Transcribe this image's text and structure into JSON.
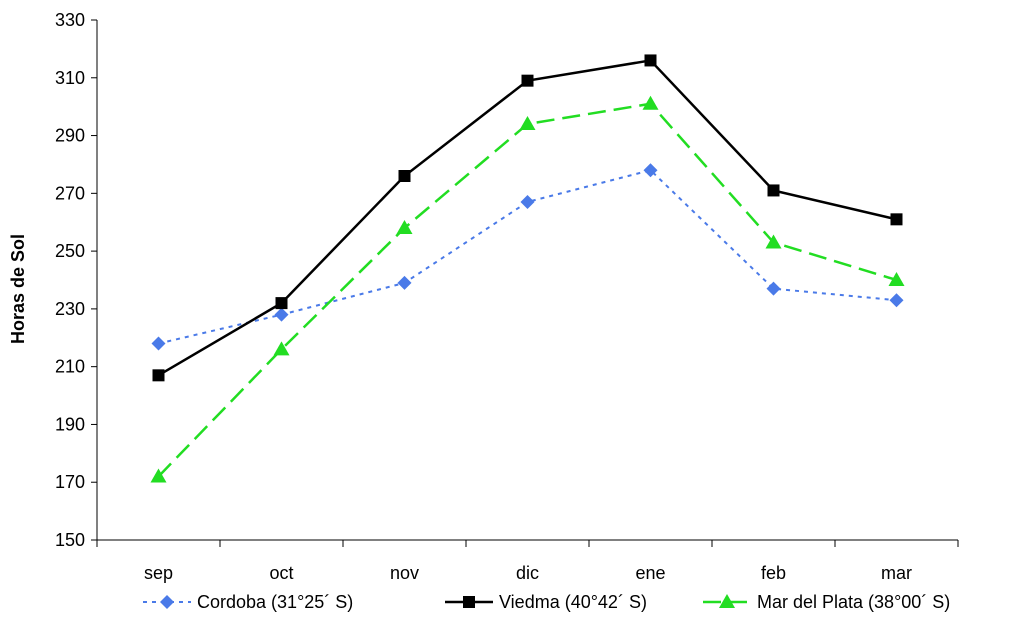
{
  "chart_data": {
    "type": "line",
    "ylabel": "Horas de Sol",
    "xlabel": "",
    "ylim": [
      150,
      330
    ],
    "yticks": [
      150,
      170,
      190,
      210,
      230,
      250,
      270,
      290,
      310,
      330
    ],
    "grid": false,
    "legend_position": "bottom",
    "categories": [
      "sep",
      "oct",
      "nov",
      "dic",
      "ene",
      "feb",
      "mar"
    ],
    "series": [
      {
        "name": "Cordoba (31°25´ S)",
        "values": [
          218,
          228,
          239,
          267,
          278,
          237,
          233
        ],
        "color": "#4a7ae8",
        "dash": "dotted",
        "marker": "diamond"
      },
      {
        "name": "Viedma (40°42´ S)",
        "values": [
          207,
          232,
          276,
          309,
          316,
          271,
          261
        ],
        "color": "#000000",
        "dash": "solid",
        "marker": "square"
      },
      {
        "name": "Mar del Plata (38°00´ S)",
        "values": [
          172,
          216,
          258,
          294,
          301,
          253,
          240
        ],
        "color": "#22dd22",
        "dash": "dashed",
        "marker": "triangle"
      }
    ]
  }
}
